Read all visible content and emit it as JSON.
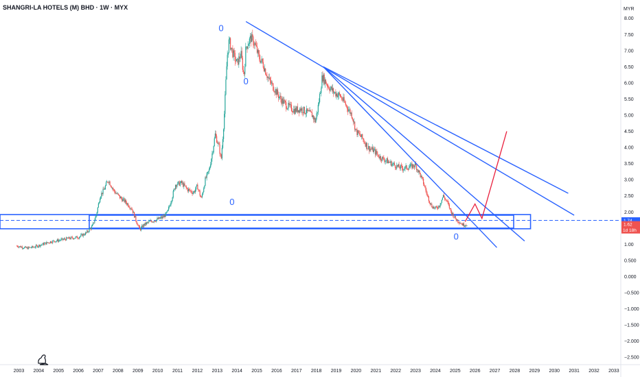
{
  "chart_data": {
    "type": "candlestick",
    "title": "SHANGRI-LA HOTELS (M) BHD · 1W · MYX",
    "currency": "MYR",
    "current_price": "1.62",
    "countdown": "1d 18h",
    "level_marker": "1.74",
    "y_ticks": [
      "8.00",
      "7.50",
      "7.00",
      "6.50",
      "6.00",
      "5.50",
      "5.00",
      "4.50",
      "4.00",
      "3.50",
      "3.00",
      "2.50",
      "2.00",
      "1.50",
      "1.00",
      "0.500",
      "0.000",
      "−0.500",
      "−1.000",
      "−1.500",
      "−2.000",
      "−2.500"
    ],
    "y_tick_values": [
      8.0,
      7.5,
      7.0,
      6.5,
      6.0,
      5.5,
      5.0,
      4.5,
      4.0,
      3.5,
      3.0,
      2.5,
      2.0,
      1.5,
      1.0,
      0.5,
      0.0,
      -0.5,
      -1.0,
      -1.5,
      -2.0,
      -2.5
    ],
    "ylim": [
      -2.73,
      8.1
    ],
    "x_ticks": [
      "2003",
      "2004",
      "2005",
      "2006",
      "2007",
      "2008",
      "2009",
      "2010",
      "2011",
      "2012",
      "2013",
      "2014",
      "2015",
      "2016",
      "2017",
      "2018",
      "2019",
      "2020",
      "2021",
      "2022",
      "2023",
      "2024",
      "2025",
      "2026",
      "2027",
      "2028",
      "2029",
      "2030",
      "2031",
      "2032",
      "2033"
    ],
    "x_tick_values": [
      2003,
      2004,
      2005,
      2006,
      2007,
      2008,
      2009,
      2010,
      2011,
      2012,
      2013,
      2014,
      2015,
      2016,
      2017,
      2018,
      2019,
      2020,
      2021,
      2022,
      2023,
      2024,
      2025,
      2026,
      2027,
      2028,
      2029,
      2030,
      2031,
      2032,
      2033
    ],
    "xlim": [
      2002.05,
      2033.35
    ],
    "price_path": [
      [
        2002.9,
        0.95
      ],
      [
        2003.4,
        0.88
      ],
      [
        2003.8,
        0.92
      ],
      [
        2004.2,
        1.0
      ],
      [
        2004.6,
        1.08
      ],
      [
        2005.0,
        1.12
      ],
      [
        2005.5,
        1.18
      ],
      [
        2006.0,
        1.22
      ],
      [
        2006.4,
        1.35
      ],
      [
        2006.7,
        1.55
      ],
      [
        2006.9,
        1.9
      ],
      [
        2007.1,
        2.5
      ],
      [
        2007.3,
        2.7
      ],
      [
        2007.5,
        3.0
      ],
      [
        2007.8,
        2.65
      ],
      [
        2008.1,
        2.45
      ],
      [
        2008.4,
        2.3
      ],
      [
        2008.7,
        2.1
      ],
      [
        2008.9,
        1.75
      ],
      [
        2009.1,
        1.45
      ],
      [
        2009.3,
        1.6
      ],
      [
        2009.6,
        1.7
      ],
      [
        2009.9,
        1.75
      ],
      [
        2010.1,
        1.8
      ],
      [
        2010.3,
        1.85
      ],
      [
        2010.5,
        2.0
      ],
      [
        2010.7,
        2.4
      ],
      [
        2010.9,
        2.85
      ],
      [
        2011.2,
        2.9
      ],
      [
        2011.5,
        2.7
      ],
      [
        2011.8,
        2.6
      ],
      [
        2012.0,
        2.8
      ],
      [
        2012.2,
        2.4
      ],
      [
        2012.4,
        3.0
      ],
      [
        2012.6,
        3.3
      ],
      [
        2012.8,
        4.0
      ],
      [
        2012.9,
        4.4
      ],
      [
        2013.1,
        4.0
      ],
      [
        2013.2,
        3.6
      ],
      [
        2013.35,
        4.9
      ],
      [
        2013.5,
        6.8
      ],
      [
        2013.6,
        7.3
      ],
      [
        2013.8,
        6.9
      ],
      [
        2014.0,
        6.6
      ],
      [
        2014.2,
        6.9
      ],
      [
        2014.35,
        6.2
      ],
      [
        2014.45,
        7.1
      ],
      [
        2014.7,
        7.4
      ],
      [
        2014.9,
        7.2
      ],
      [
        2015.1,
        6.8
      ],
      [
        2015.3,
        6.6
      ],
      [
        2015.6,
        6.1
      ],
      [
        2015.9,
        5.8
      ],
      [
        2016.2,
        5.5
      ],
      [
        2016.5,
        5.3
      ],
      [
        2016.9,
        5.15
      ],
      [
        2017.2,
        5.2
      ],
      [
        2017.5,
        5.1
      ],
      [
        2017.8,
        5.0
      ],
      [
        2017.95,
        4.8
      ],
      [
        2018.1,
        5.3
      ],
      [
        2018.3,
        6.2
      ],
      [
        2018.6,
        5.9
      ],
      [
        2018.9,
        5.7
      ],
      [
        2019.2,
        5.6
      ],
      [
        2019.5,
        5.3
      ],
      [
        2019.8,
        5.0
      ],
      [
        2020.0,
        4.5
      ],
      [
        2020.3,
        4.3
      ],
      [
        2020.6,
        4.0
      ],
      [
        2020.9,
        3.9
      ],
      [
        2021.2,
        3.7
      ],
      [
        2021.5,
        3.6
      ],
      [
        2021.8,
        3.5
      ],
      [
        2022.1,
        3.4
      ],
      [
        2022.4,
        3.35
      ],
      [
        2022.7,
        3.4
      ],
      [
        2023.0,
        3.45
      ],
      [
        2023.2,
        3.2
      ],
      [
        2023.4,
        2.9
      ],
      [
        2023.6,
        2.5
      ],
      [
        2023.8,
        2.2
      ],
      [
        2024.0,
        2.1
      ],
      [
        2024.2,
        2.2
      ],
      [
        2024.4,
        2.5
      ],
      [
        2024.6,
        2.3
      ],
      [
        2024.8,
        2.0
      ],
      [
        2025.0,
        1.8
      ],
      [
        2025.2,
        1.7
      ],
      [
        2025.4,
        1.6
      ],
      [
        2025.6,
        1.62
      ]
    ],
    "annotations": {
      "markers": [
        {
          "label": "0",
          "x": 2013.2,
          "y": 7.6
        },
        {
          "label": "0",
          "x": 2014.45,
          "y": 5.95
        },
        {
          "label": "0",
          "x": 2013.75,
          "y": 2.22
        },
        {
          "label": "0",
          "x": 2025.05,
          "y": 1.15
        }
      ],
      "trendlines": [
        {
          "color": "#2962ff",
          "from": [
            2014.45,
            7.9
          ],
          "to": [
            2031.0,
            1.9
          ]
        },
        {
          "color": "#2962ff",
          "from": [
            2018.35,
            6.5
          ],
          "to": [
            2030.7,
            2.58
          ]
        },
        {
          "color": "#2962ff",
          "from": [
            2018.35,
            6.5
          ],
          "to": [
            2027.1,
            0.9
          ]
        },
        {
          "color": "#2962ff",
          "from": [
            2018.35,
            6.5
          ],
          "to": [
            2028.5,
            1.1
          ]
        }
      ],
      "support_zones": [
        {
          "color": "#2962ff",
          "x": [
            2002.05,
            2028.8
          ],
          "y": [
            1.48,
            1.92
          ]
        },
        {
          "color": "#2962ff",
          "x": [
            2006.55,
            2027.95
          ],
          "y": [
            1.5,
            1.9
          ]
        }
      ],
      "support_level": {
        "y": 1.74,
        "color": "#2962ff"
      },
      "projection": {
        "color": "#e91e3c",
        "points": [
          [
            2025.5,
            1.7
          ],
          [
            2026.0,
            2.25
          ],
          [
            2026.35,
            1.8
          ],
          [
            2027.6,
            4.5
          ]
        ]
      }
    },
    "colors": {
      "up": "#26a69a",
      "down": "#ef5350",
      "annotation": "#2962ff",
      "projection": "#e91e3c"
    }
  }
}
